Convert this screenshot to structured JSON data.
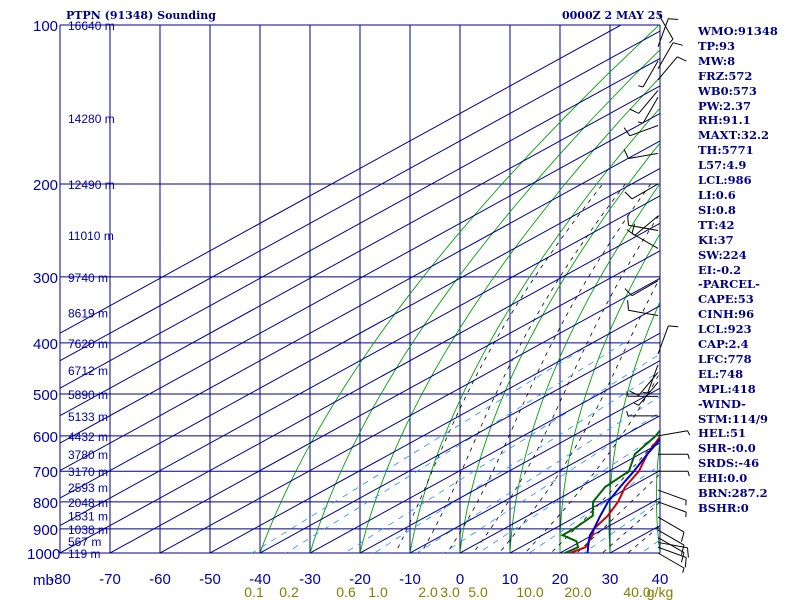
{
  "header": {
    "station": "PTPN (91348) Sounding",
    "time": "0000Z  2 MAY 25"
  },
  "indices": [
    "WMO:91348",
    "TP:93",
    "MW:8",
    "FRZ:572",
    "WB0:573",
    "PW:2.37",
    "RH:91.1",
    "MAXT:32.2",
    "TH:5771",
    "L57:4.9",
    "LCL:986",
    "LI:0.6",
    "SI:0.8",
    "TT:42",
    "KI:37",
    "SW:224",
    "EI:-0.2",
    "-PARCEL-",
    "CAPE:53",
    "CINH:96",
    "LCL:923",
    "CAP:2.4",
    "LFC:778",
    "EL:748",
    "MPL:418",
    "-WIND-",
    "STM:114/9",
    "HEL:51",
    "SHR-:0.0",
    "SRDS:-46",
    "EHI:0.0",
    "BRN:287.2",
    "BSHR:0"
  ],
  "colors": {
    "grid": "#00008b",
    "isotherm": "#00008b",
    "dry_adiabat": "#00a000",
    "moist_adiabat": "#000000",
    "mixing_ratio": "#1e90ff",
    "temperature": "#cc0000",
    "dewpoint": "#006400",
    "parcel": "#0000cc",
    "axis_text": "#0000a0",
    "mix_text": "#808000",
    "wind": "#000000"
  },
  "chart_data": {
    "type": "line",
    "y_unit": "mb",
    "x_unit": "",
    "pressure_levels": [
      100,
      200,
      300,
      400,
      500,
      600,
      700,
      800,
      900,
      1000
    ],
    "pressure_labels": [
      "100",
      "200",
      "300",
      "400",
      "500",
      "600",
      "700",
      "800",
      "900",
      "1000",
      "mb"
    ],
    "temperature_ticks": [
      "-80",
      "-70",
      "-60",
      "-50",
      "-40",
      "-30",
      "-20",
      "-10",
      "0",
      "10",
      "20",
      "30",
      "40"
    ],
    "mixing_ratio_labels": [
      "0.1",
      "0.2",
      "0.6",
      "1.0",
      "2.0",
      "3.0",
      "5.0",
      "10.0",
      "20.0",
      "40.0",
      "g/kg"
    ],
    "height_labels": [
      {
        "p": 100,
        "label": "16640 m"
      },
      {
        "p": 150,
        "label": "14280 m"
      },
      {
        "p": 200,
        "label": "12490 m"
      },
      {
        "p": 250,
        "label": "11010 m"
      },
      {
        "p": 300,
        "label": "9740 m"
      },
      {
        "p": 350,
        "label": "8619 m"
      },
      {
        "p": 400,
        "label": "7620 m"
      },
      {
        "p": 450,
        "label": "6712 m"
      },
      {
        "p": 500,
        "label": "5890 m"
      },
      {
        "p": 550,
        "label": "5133 m"
      },
      {
        "p": 600,
        "label": "4432 m"
      },
      {
        "p": 650,
        "label": "3780 m"
      },
      {
        "p": 700,
        "label": "3170 m"
      },
      {
        "p": 750,
        "label": "2593 m"
      },
      {
        "p": 800,
        "label": "2048 m"
      },
      {
        "p": 850,
        "label": "1531 m"
      },
      {
        "p": 900,
        "label": "1038 m"
      },
      {
        "p": 950,
        "label": "567 m"
      },
      {
        "p": 1000,
        "label": "119 m"
      }
    ],
    "xlim": [
      -80,
      40
    ],
    "ylim": [
      1000,
      100
    ],
    "log_pressure": true,
    "skew": true,
    "series": [
      {
        "name": "temperature",
        "points": [
          [
            1008,
            24
          ],
          [
            1000,
            22
          ],
          [
            975,
            23
          ],
          [
            950,
            21.5
          ],
          [
            925,
            20
          ],
          [
            900,
            18
          ],
          [
            850,
            16
          ],
          [
            800,
            13
          ],
          [
            750,
            9
          ],
          [
            700,
            6
          ],
          [
            650,
            1.5
          ],
          [
            600,
            -2.5
          ],
          [
            550,
            -7
          ],
          [
            500,
            -12
          ],
          [
            450,
            -17
          ],
          [
            400,
            -22.5
          ],
          [
            350,
            -29
          ],
          [
            300,
            -36.5
          ],
          [
            270,
            -41.5
          ],
          [
            250,
            -45
          ],
          [
            225,
            -50
          ],
          [
            200,
            -55
          ],
          [
            170,
            -62
          ],
          [
            150,
            -65.5
          ],
          [
            120,
            -70
          ],
          [
            100,
            -75
          ]
        ]
      },
      {
        "name": "dewpoint",
        "points": [
          [
            1008,
            23
          ],
          [
            1000,
            21
          ],
          [
            975,
            21.5
          ],
          [
            950,
            19
          ],
          [
            925,
            14
          ],
          [
            900,
            14
          ],
          [
            850,
            13
          ],
          [
            800,
            8
          ],
          [
            750,
            5
          ],
          [
            700,
            4
          ],
          [
            650,
            -1
          ],
          [
            600,
            -3.5
          ],
          [
            550,
            -7.5
          ],
          [
            500,
            -12
          ],
          [
            450,
            -18
          ],
          [
            400,
            -22.5
          ],
          [
            350,
            -29.5
          ],
          [
            300,
            -38.5
          ],
          [
            250,
            -45
          ],
          [
            240,
            -50
          ],
          [
            240,
            -54
          ],
          [
            220,
            -58
          ],
          [
            200,
            -63
          ],
          [
            170,
            -67
          ],
          [
            150,
            -72
          ],
          [
            130,
            -76
          ],
          [
            120,
            -79
          ]
        ]
      },
      {
        "name": "parcel",
        "points": [
          [
            1008,
            27
          ],
          [
            1000,
            25.5
          ],
          [
            975,
            23.5
          ],
          [
            950,
            21.5
          ],
          [
            925,
            19.5
          ],
          [
            900,
            18
          ],
          [
            850,
            14.5
          ],
          [
            800,
            11
          ],
          [
            750,
            8
          ],
          [
            700,
            5
          ],
          [
            650,
            1.5
          ],
          [
            600,
            -2
          ],
          [
            550,
            -6.5
          ],
          [
            500,
            -11
          ],
          [
            450,
            -16.5
          ],
          [
            400,
            -22
          ],
          [
            350,
            -28.5
          ],
          [
            300,
            -36
          ],
          [
            250,
            -45.5
          ],
          [
            200,
            -55.5
          ],
          [
            150,
            -68
          ],
          [
            100,
            -83
          ]
        ]
      }
    ],
    "wind_barbs": [
      {
        "p": 95,
        "dir": 150,
        "spd": 5
      },
      {
        "p": 110,
        "dir": 20,
        "spd": 10
      },
      {
        "p": 117,
        "dir": 210,
        "spd": 5
      },
      {
        "p": 121,
        "dir": 30,
        "spd": 10
      },
      {
        "p": 127,
        "dir": 40,
        "spd": 10
      },
      {
        "p": 133,
        "dir": 220,
        "spd": 10
      },
      {
        "p": 137,
        "dir": 210,
        "spd": 5
      },
      {
        "p": 155,
        "dir": 250,
        "spd": 10
      },
      {
        "p": 175,
        "dir": 260,
        "spd": 10
      },
      {
        "p": 200,
        "dir": 240,
        "spd": 10
      },
      {
        "p": 230,
        "dir": 230,
        "spd": 10
      },
      {
        "p": 245,
        "dir": 280,
        "spd": 10
      },
      {
        "p": 265,
        "dir": 300,
        "spd": 10
      },
      {
        "p": 305,
        "dir": 240,
        "spd": 10
      },
      {
        "p": 355,
        "dir": 280,
        "spd": 10
      },
      {
        "p": 420,
        "dir": 20,
        "spd": 10
      },
      {
        "p": 440,
        "dir": 200,
        "spd": 5
      },
      {
        "p": 455,
        "dir": 220,
        "spd": 10
      },
      {
        "p": 475,
        "dir": 220,
        "spd": 5
      },
      {
        "p": 505,
        "dir": 270,
        "spd": 5
      },
      {
        "p": 550,
        "dir": 270,
        "spd": 5
      },
      {
        "p": 600,
        "dir": 80,
        "spd": 5
      },
      {
        "p": 650,
        "dir": 90,
        "spd": 5
      },
      {
        "p": 700,
        "dir": 90,
        "spd": 5
      },
      {
        "p": 760,
        "dir": 110,
        "spd": 5
      },
      {
        "p": 800,
        "dir": 110,
        "spd": 5
      },
      {
        "p": 855,
        "dir": 120,
        "spd": 10
      },
      {
        "p": 905,
        "dir": 120,
        "spd": 10
      },
      {
        "p": 935,
        "dir": 120,
        "spd": 10
      },
      {
        "p": 955,
        "dir": 100,
        "spd": 10
      },
      {
        "p": 975,
        "dir": 110,
        "spd": 10
      },
      {
        "p": 1000,
        "dir": 120,
        "spd": 5
      }
    ]
  }
}
